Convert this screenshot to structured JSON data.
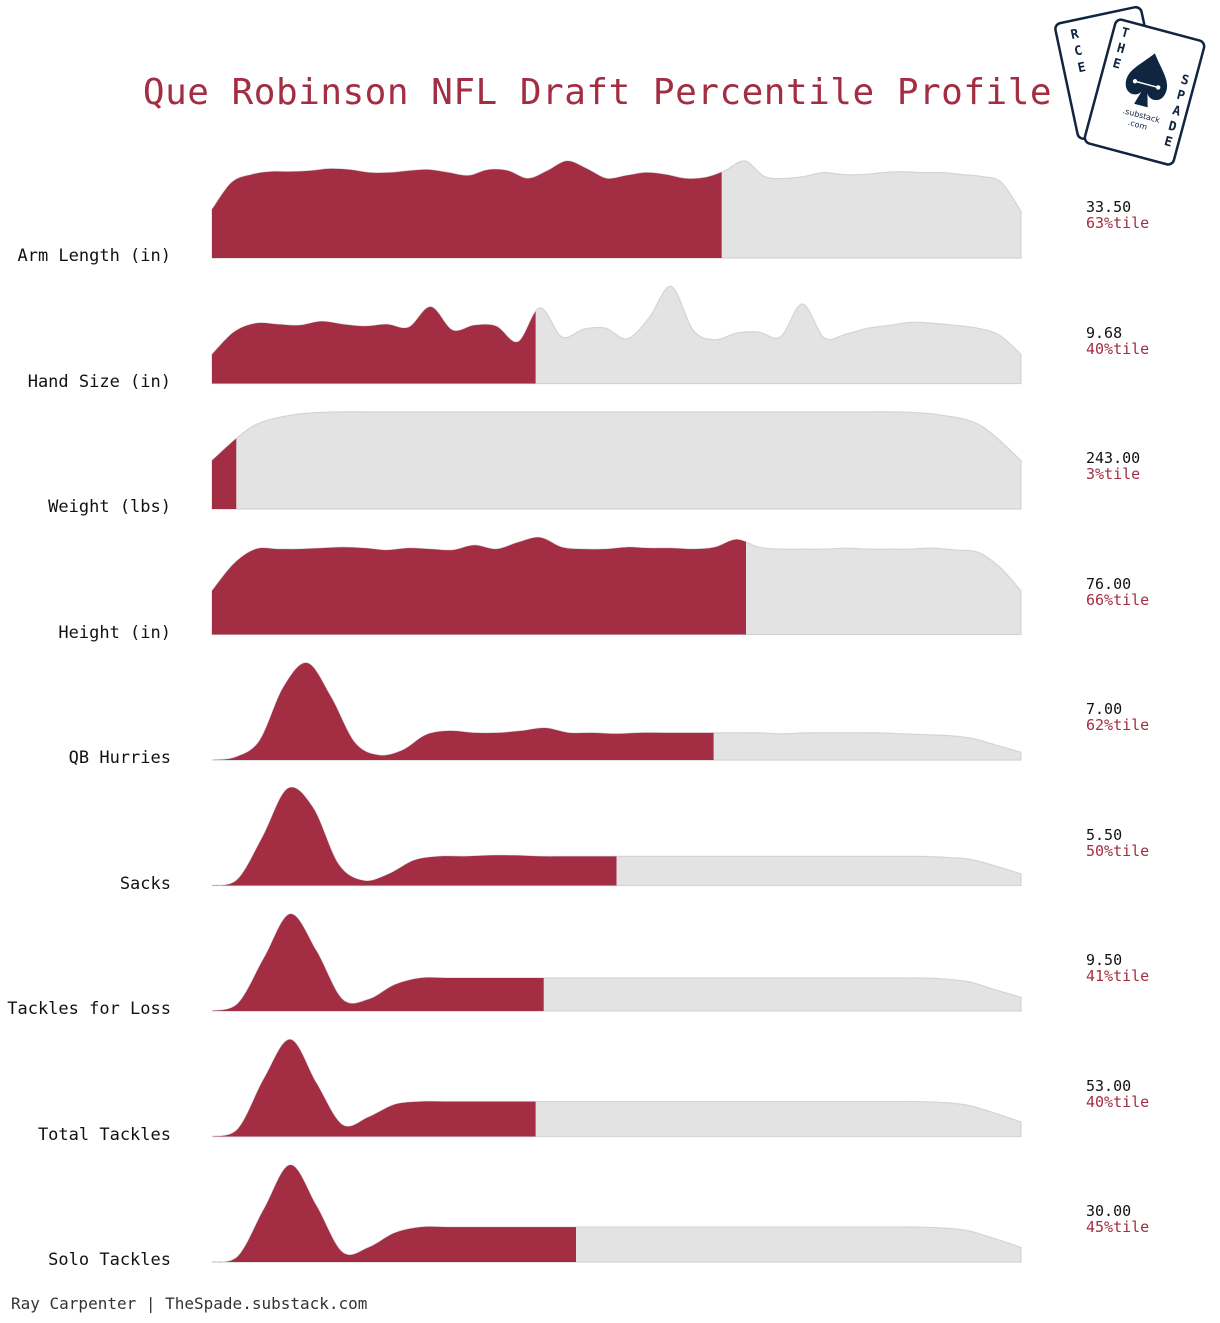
{
  "title": "Que Robinson NFL Draft Percentile Profile",
  "credit": "Ray Carpenter | TheSpade.substack.com",
  "logo": {
    "letters_back": [
      "R",
      "C",
      "E"
    ],
    "letters_front_left": [
      "T",
      "H",
      "E"
    ],
    "letters_front_right": [
      "S",
      "P",
      "A",
      "D",
      "E"
    ],
    "sub1": ".substack",
    "sub2": ".com"
  },
  "colors": {
    "highlight": "#a32d43",
    "background_ridge": "#e3e3e3",
    "ridge_edge": "#d4d4d4",
    "logo": "#0f2540"
  },
  "chart_data": {
    "type": "ridgeline",
    "title": "Que Robinson NFL Draft Percentile Profile",
    "xlabel": "",
    "ylabel": "",
    "grid": false,
    "legend": "none",
    "series": [
      {
        "name": "Arm Length (in)",
        "value": "33.50",
        "percentile": 63,
        "percentile_label": "63%tile",
        "density": [
          0.5,
          0.78,
          0.86,
          0.89,
          0.89,
          0.9,
          0.92,
          0.91,
          0.88,
          0.88,
          0.9,
          0.91,
          0.88,
          0.85,
          0.91,
          0.9,
          0.82,
          0.9,
          1.0,
          0.92,
          0.82,
          0.85,
          0.88,
          0.86,
          0.82,
          0.83,
          0.9,
          1.0,
          0.84,
          0.82,
          0.84,
          0.88,
          0.86,
          0.86,
          0.88,
          0.89,
          0.88,
          0.88,
          0.86,
          0.84,
          0.78,
          0.48
        ]
      },
      {
        "name": "Hand Size (in)",
        "value": "9.68",
        "percentile": 40,
        "percentile_label": "40%tile",
        "density": [
          0.3,
          0.53,
          0.62,
          0.61,
          0.6,
          0.64,
          0.61,
          0.59,
          0.61,
          0.58,
          0.79,
          0.55,
          0.6,
          0.59,
          0.43,
          0.78,
          0.48,
          0.56,
          0.57,
          0.46,
          0.68,
          1.0,
          0.55,
          0.45,
          0.52,
          0.53,
          0.48,
          0.82,
          0.47,
          0.51,
          0.57,
          0.6,
          0.63,
          0.62,
          0.6,
          0.57,
          0.5,
          0.3
        ]
      },
      {
        "name": "Weight (lbs)",
        "value": "243.00",
        "percentile": 3,
        "percentile_label": "3%tile",
        "density": [
          0.5,
          0.85,
          0.97,
          1.0,
          1.0,
          1.0,
          1.0,
          1.0,
          1.0,
          1.0,
          1.0,
          1.0,
          1.0,
          1.0,
          1.0,
          1.0,
          1.0,
          1.0,
          0.97,
          0.86,
          0.5
        ]
      },
      {
        "name": "Height (in)",
        "value": "76.00",
        "percentile": 66,
        "percentile_label": "66%tile",
        "density": [
          0.45,
          0.73,
          0.88,
          0.88,
          0.88,
          0.89,
          0.9,
          0.89,
          0.87,
          0.89,
          0.88,
          0.87,
          0.92,
          0.88,
          0.95,
          1.0,
          0.9,
          0.88,
          0.88,
          0.9,
          0.89,
          0.89,
          0.88,
          0.9,
          0.98,
          0.9,
          0.88,
          0.88,
          0.88,
          0.89,
          0.88,
          0.88,
          0.88,
          0.89,
          0.87,
          0.85,
          0.7,
          0.45
        ]
      },
      {
        "name": "QB Hurries",
        "value": "7.00",
        "percentile": 62,
        "percentile_label": "62%tile",
        "density": [
          0.0,
          0.03,
          0.2,
          0.75,
          1.0,
          0.65,
          0.18,
          0.05,
          0.1,
          0.26,
          0.3,
          0.28,
          0.28,
          0.3,
          0.33,
          0.28,
          0.28,
          0.27,
          0.28,
          0.28,
          0.28,
          0.28,
          0.28,
          0.28,
          0.27,
          0.28,
          0.28,
          0.28,
          0.28,
          0.27,
          0.26,
          0.25,
          0.22,
          0.15,
          0.08
        ]
      },
      {
        "name": "Sacks",
        "value": "5.50",
        "percentile": 50,
        "percentile_label": "50%tile",
        "density": [
          0.0,
          0.06,
          0.5,
          1.0,
          0.8,
          0.22,
          0.05,
          0.12,
          0.26,
          0.3,
          0.3,
          0.31,
          0.31,
          0.3,
          0.3,
          0.3,
          0.3,
          0.3,
          0.3,
          0.3,
          0.3,
          0.3,
          0.3,
          0.3,
          0.3,
          0.3,
          0.3,
          0.3,
          0.3,
          0.29,
          0.27,
          0.2,
          0.12
        ]
      },
      {
        "name": "Tackles for Loss",
        "value": "9.50",
        "percentile": 41,
        "percentile_label": "41%tile",
        "density": [
          0.0,
          0.08,
          0.55,
          1.0,
          0.62,
          0.12,
          0.12,
          0.27,
          0.34,
          0.34,
          0.34,
          0.34,
          0.34,
          0.34,
          0.34,
          0.34,
          0.34,
          0.34,
          0.34,
          0.34,
          0.34,
          0.34,
          0.34,
          0.34,
          0.34,
          0.34,
          0.34,
          0.34,
          0.33,
          0.3,
          0.22,
          0.14
        ]
      },
      {
        "name": "Total Tackles",
        "value": "53.00",
        "percentile": 40,
        "percentile_label": "40%tile",
        "density": [
          0.0,
          0.08,
          0.6,
          1.0,
          0.55,
          0.12,
          0.2,
          0.33,
          0.36,
          0.36,
          0.36,
          0.36,
          0.36,
          0.36,
          0.36,
          0.36,
          0.36,
          0.36,
          0.36,
          0.36,
          0.36,
          0.36,
          0.36,
          0.36,
          0.36,
          0.36,
          0.36,
          0.36,
          0.35,
          0.32,
          0.24,
          0.15
        ]
      },
      {
        "name": "Solo Tackles",
        "value": "30.00",
        "percentile": 45,
        "percentile_label": "45%tile",
        "density": [
          0.0,
          0.06,
          0.55,
          1.0,
          0.58,
          0.1,
          0.15,
          0.3,
          0.36,
          0.36,
          0.36,
          0.36,
          0.36,
          0.36,
          0.36,
          0.36,
          0.36,
          0.36,
          0.36,
          0.36,
          0.36,
          0.36,
          0.36,
          0.36,
          0.36,
          0.36,
          0.36,
          0.36,
          0.35,
          0.32,
          0.24,
          0.15
        ]
      }
    ]
  }
}
